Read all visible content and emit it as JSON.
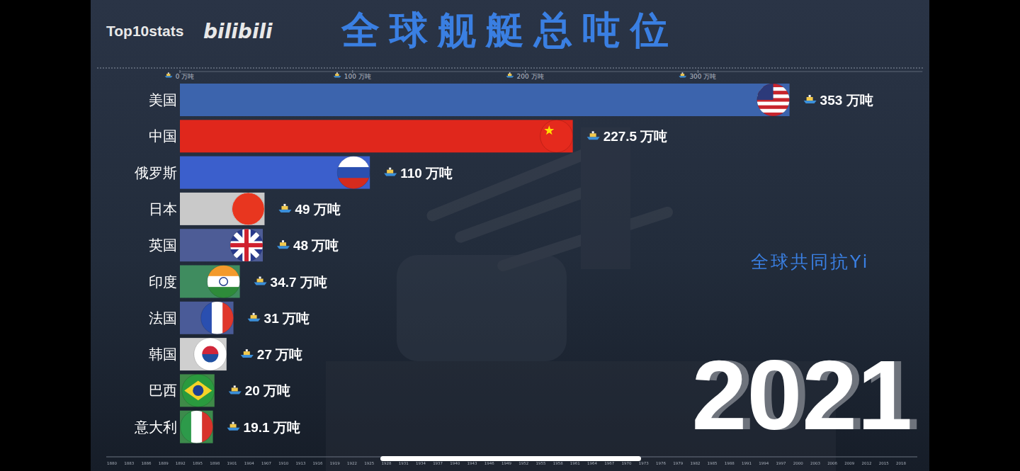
{
  "chart_data": {
    "type": "bar",
    "title": "全球舰艇总吨位",
    "orientation": "horizontal",
    "categories": [
      "美国",
      "中国",
      "俄罗斯",
      "日本",
      "英国",
      "印度",
      "法国",
      "韩国",
      "巴西",
      "意大利"
    ],
    "values": [
      353,
      227.5,
      110,
      49,
      48,
      34.7,
      31,
      27,
      20,
      19.1
    ],
    "value_labels": [
      "353 万吨",
      "227.5 万吨",
      "110 万吨",
      "49 万吨",
      "48 万吨",
      "34.7 万吨",
      "31 万吨",
      "27 万吨",
      "20 万吨",
      "19.1 万吨"
    ],
    "colors": [
      "#3c64ad",
      "#e0271c",
      "#3b5fcc",
      "#c9c9c9",
      "#4d5c96",
      "#3f8c5f",
      "#4a5b98",
      "#cfcfcf",
      "#3f8a48",
      "#3d8a4c"
    ],
    "xlim": [
      0,
      430
    ],
    "xticks": [
      {
        "value": 0,
        "label": "0 万吨"
      },
      {
        "value": 100,
        "label": "100 万吨"
      },
      {
        "value": 200,
        "label": "200 万吨"
      },
      {
        "value": 300,
        "label": "300 万吨"
      }
    ],
    "data_labels": true,
    "grid": false
  },
  "page": {
    "brand": "Top10stats",
    "logo": "bilibili",
    "watermark": "全球共同抗Yi",
    "year": "2021",
    "timeline": [
      1880,
      1883,
      1886,
      1889,
      1892,
      1895,
      1898,
      1901,
      1904,
      1907,
      1910,
      1913,
      1916,
      1919,
      1922,
      1925,
      1928,
      1931,
      1934,
      1937,
      1940,
      1943,
      1946,
      1949,
      1952,
      1955,
      1958,
      1961,
      1964,
      1967,
      1970,
      1973,
      1976,
      1979,
      1982,
      1985,
      1988,
      1991,
      1994,
      1997,
      2000,
      2003,
      2006,
      2009,
      2012,
      2015,
      2018
    ]
  }
}
